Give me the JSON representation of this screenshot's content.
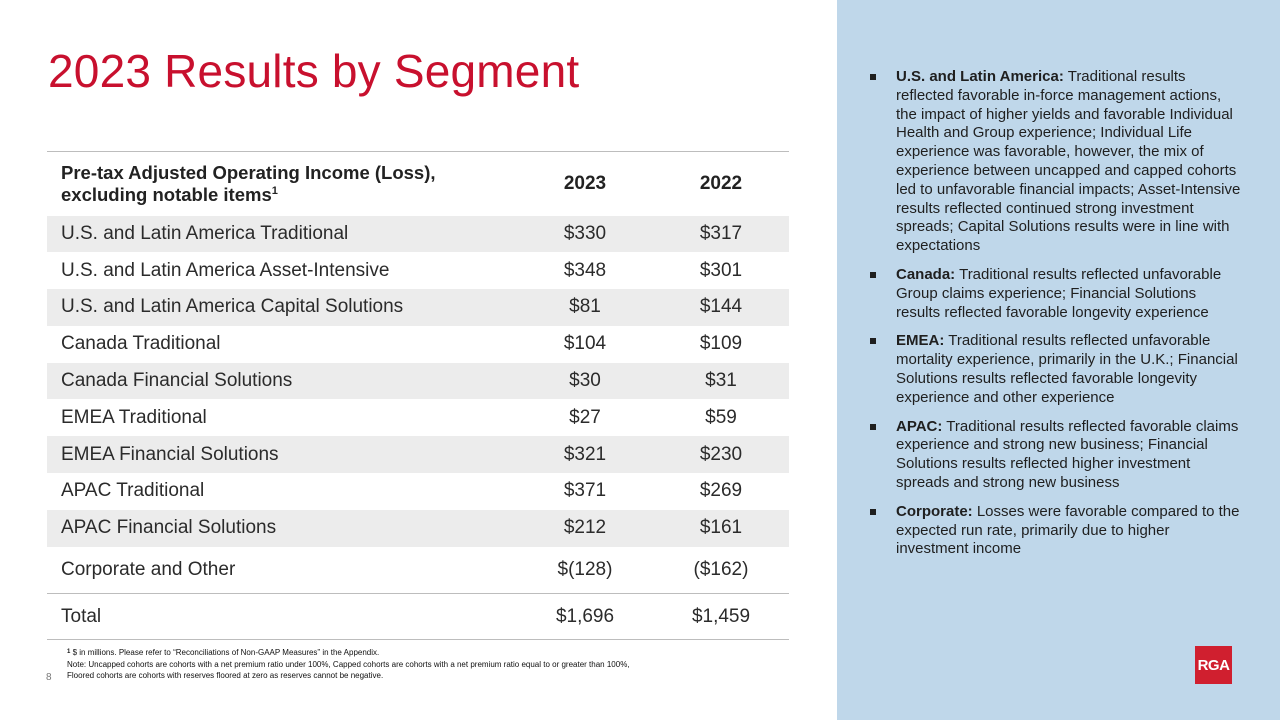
{
  "title": "2023 Results by Segment",
  "table": {
    "header": {
      "label_line1": "Pre-tax Adjusted Operating Income (Loss),",
      "label_line2": "excluding notable items",
      "label_sup": "1",
      "col_2023": "2023",
      "col_2022": "2022"
    },
    "rows": [
      {
        "label": "U.S. and Latin America Traditional",
        "v2023": "$330",
        "v2022": "$317"
      },
      {
        "label": "U.S. and Latin America Asset-Intensive",
        "v2023": "$348",
        "v2022": "$301"
      },
      {
        "label": "U.S. and Latin America Capital Solutions",
        "v2023": "$81",
        "v2022": "$144"
      },
      {
        "label": "Canada Traditional",
        "v2023": "$104",
        "v2022": "$109"
      },
      {
        "label": "Canada Financial Solutions",
        "v2023": "$30",
        "v2022": "$31"
      },
      {
        "label": "EMEA Traditional",
        "v2023": "$27",
        "v2022": "$59"
      },
      {
        "label": "EMEA Financial Solutions",
        "v2023": "$321",
        "v2022": "$230"
      },
      {
        "label": "APAC Traditional",
        "v2023": "$371",
        "v2022": "$269"
      },
      {
        "label": "APAC Financial Solutions",
        "v2023": "$212",
        "v2022": "$161"
      },
      {
        "label": "Corporate and Other",
        "v2023": "$(128)",
        "v2022": "($162)"
      }
    ],
    "total": {
      "label": "Total",
      "v2023": "$1,696",
      "v2022": "$1,459"
    }
  },
  "footnotes": {
    "note1_sup": "1",
    "note1": "$ in millions. Please refer to “Reconciliations  of Non-GAAP  Measures” in the Appendix.",
    "note2_line1": "Note: Uncapped  cohorts  are cohorts  with a net premium  ratio under 100%, Capped cohorts  are cohorts  with a net premium  ratio equal to or greater than 100%,",
    "note2_line2": "Floored cohorts  are cohorts  with reserves floored at zero as reserves cannot  be negative."
  },
  "page_number": "8",
  "bullets": [
    {
      "head": "U.S. and Latin America:",
      "text": " Traditional results reflected favorable in-force management actions, the impact of higher yields and favorable Individual Health and Group experience; Individual Life experience was favorable, however, the mix of experience between uncapped and capped cohorts led to unfavorable financial impacts; Asset-Intensive results reflected continued strong investment spreads; Capital Solutions results were in line with expectations"
    },
    {
      "head": "Canada:",
      "text": " Traditional results reflected unfavorable Group claims experience; Financial Solutions results reflected favorable longevity experience"
    },
    {
      "head": "EMEA:",
      "text": " Traditional results reflected unfavorable mortality experience, primarily in the U.K.; Financial Solutions results reflected favorable longevity experience and other experience"
    },
    {
      "head": "APAC:",
      "text": " Traditional results reflected favorable claims experience and strong new business; Financial Solutions results reflected higher investment spreads and strong new business"
    },
    {
      "head": "Corporate:",
      "text": " Losses were favorable compared to the expected run rate, primarily due to higher investment income"
    }
  ],
  "logo": "RGA",
  "colors": {
    "title": "#c8102e",
    "side_panel": "#bfd7ea",
    "row_alt": "#ececec",
    "logo_bg": "#d01f2f"
  }
}
